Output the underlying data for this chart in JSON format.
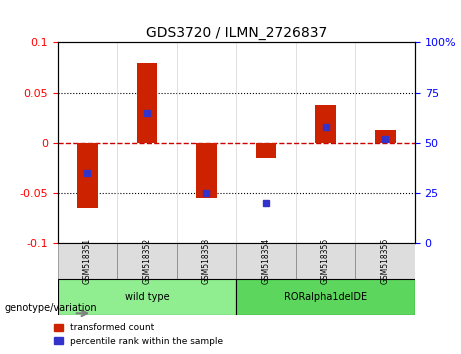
{
  "title": "GDS3720 / ILMN_2726837",
  "samples": [
    "GSM518351",
    "GSM518352",
    "GSM518353",
    "GSM518354",
    "GSM518355",
    "GSM518356"
  ],
  "red_values": [
    -0.065,
    0.08,
    -0.055,
    -0.015,
    0.038,
    0.013
  ],
  "blue_values_percentile": [
    35,
    65,
    25,
    20,
    58,
    52
  ],
  "groups": [
    {
      "name": "wild type",
      "indices": [
        0,
        1,
        2
      ],
      "color": "#90ee90"
    },
    {
      "name": "RORalpha1delDE",
      "indices": [
        3,
        4,
        5
      ],
      "color": "#5cd65c"
    }
  ],
  "ylim_left": [
    -0.1,
    0.1
  ],
  "ylim_right": [
    0,
    100
  ],
  "yticks_left": [
    -0.1,
    -0.05,
    0,
    0.05,
    0.1
  ],
  "yticks_right": [
    0,
    25,
    50,
    75,
    100
  ],
  "red_color": "#cc2200",
  "blue_color": "#3333cc",
  "zero_line_color": "#cc0000",
  "grid_color": "#000000",
  "bar_width": 0.35,
  "legend_red": "transformed count",
  "legend_blue": "percentile rank within the sample",
  "genotype_label": "genotype/variation"
}
